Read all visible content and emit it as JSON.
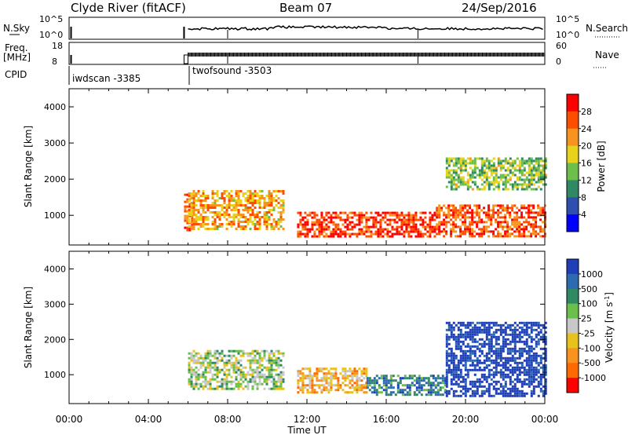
{
  "header": {
    "station": "Clyde River (fitACF)",
    "beam": "Beam 07",
    "date": "24/Sep/2016"
  },
  "strips": {
    "nsky_label": "N.Sky",
    "nsky_ticks": [
      "10^5",
      "10^0"
    ],
    "nsearch_label": "N.Search",
    "nsearch_ticks": [
      "10^5",
      "10^0"
    ],
    "freq_label_line1": "Freq.",
    "freq_label_line2": "[MHz]",
    "freq_ticks": [
      "18",
      "8"
    ],
    "nave_label": "Nave",
    "nave_ticks": [
      "60",
      "0"
    ],
    "cpid_label": "CPID",
    "cpid_modes": [
      {
        "name": "iwdscan",
        "id": "-3385"
      },
      {
        "name": "twofsound",
        "id": "-3503"
      }
    ]
  },
  "colors": {
    "power_scale": [
      "#0000ff",
      "#2e4fb0",
      "#2f8a64",
      "#6bbf4a",
      "#e8d21c",
      "#f7931e",
      "#ff4d00",
      "#ff0000"
    ],
    "velocity_scale": [
      "#1f3fb8",
      "#2d6bb0",
      "#2f8a64",
      "#6bbf4a",
      "#c8c8c8",
      "#e8c21c",
      "#f7931e",
      "#ff6a00",
      "#ff0000"
    ]
  },
  "chart_data": [
    {
      "type": "heatmap",
      "title": "",
      "xlabel": "Time UT",
      "ylabel": "Slant Range [km]",
      "x_ticks": [
        "00:00",
        "04:00",
        "08:00",
        "12:00",
        "16:00",
        "20:00",
        "00:00"
      ],
      "y_ticks": [
        "1000",
        "2000",
        "3000",
        "4000"
      ],
      "xlim_hours": [
        0,
        24
      ],
      "ylim_km": [
        180,
        4500
      ],
      "colorbar": {
        "label": "Power [dB]",
        "ticks": [
          "28",
          "24",
          "20",
          "16",
          "12",
          "8",
          "4"
        ],
        "range": [
          0,
          30
        ]
      },
      "series": [
        {
          "region": "pre-gap echoes",
          "t_start_hours": 5.8,
          "t_end_hours": 6.2,
          "range_km": [
            600,
            1600
          ],
          "value": 24
        },
        {
          "region": "morning band",
          "t_start_hours": 6.0,
          "t_end_hours": 10.8,
          "range_km": [
            600,
            1700
          ],
          "value": 20
        },
        {
          "region": "midday band",
          "t_start_hours": 11.5,
          "t_end_hours": 18.5,
          "range_km": [
            400,
            1100
          ],
          "value": 26
        },
        {
          "region": "evening lower band",
          "t_start_hours": 18.5,
          "t_end_hours": 24.0,
          "range_km": [
            400,
            1300
          ],
          "value": 24
        },
        {
          "region": "evening upper band",
          "t_start_hours": 19.0,
          "t_end_hours": 24.0,
          "range_km": [
            1700,
            2600
          ],
          "value": 14
        }
      ]
    },
    {
      "type": "heatmap",
      "title": "",
      "xlabel": "Time UT",
      "ylabel": "Slant Range [km]",
      "x_ticks": [
        "00:00",
        "04:00",
        "08:00",
        "12:00",
        "16:00",
        "20:00",
        "00:00"
      ],
      "y_ticks": [
        "1000",
        "2000",
        "3000",
        "4000"
      ],
      "xlim_hours": [
        0,
        24
      ],
      "ylim_km": [
        180,
        4500
      ],
      "colorbar": {
        "label": "Velocity [m s^-1]",
        "ticks": [
          "1000",
          "500",
          "100",
          "25",
          "-25",
          "-100",
          "-500",
          "-1000"
        ],
        "range": [
          -1000,
          1000
        ]
      },
      "series": [
        {
          "region": "morning band",
          "t_start_hours": 6.0,
          "t_end_hours": 10.8,
          "range_km": [
            600,
            1700
          ],
          "value": 100
        },
        {
          "region": "midday band",
          "t_start_hours": 11.5,
          "t_end_hours": 15.0,
          "range_km": [
            500,
            1200
          ],
          "value": -300
        },
        {
          "region": "afternoon band",
          "t_start_hours": 15.0,
          "t_end_hours": 19.0,
          "range_km": [
            400,
            1000
          ],
          "value": 500
        },
        {
          "region": "evening band",
          "t_start_hours": 19.0,
          "t_end_hours": 24.0,
          "range_km": [
            400,
            2500
          ],
          "value": 1000
        }
      ]
    }
  ]
}
